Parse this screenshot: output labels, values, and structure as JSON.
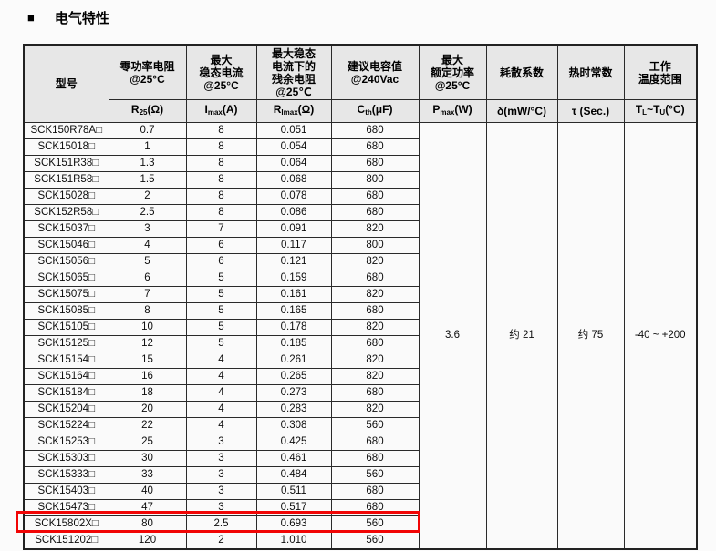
{
  "header": {
    "bullet": "■",
    "title": "电气特性"
  },
  "table": {
    "columns": [
      {
        "id": "model",
        "title": "型号",
        "unit_segments": []
      },
      {
        "id": "r25",
        "title": "零功率电阻\n@25°C",
        "unit_segments": [
          {
            "t": "R"
          },
          {
            "s": "25"
          },
          {
            "t": "(Ω)"
          }
        ]
      },
      {
        "id": "imax",
        "title": "最大\n稳态电流\n@25°C",
        "unit_segments": [
          {
            "t": "I"
          },
          {
            "s": "max"
          },
          {
            "t": "(A)"
          }
        ]
      },
      {
        "id": "rimax",
        "title": "最大稳态\n电流下的\n残余电阻\n@25℃",
        "unit_segments": [
          {
            "t": "R"
          },
          {
            "s": "Imax"
          },
          {
            "t": "(Ω)"
          }
        ]
      },
      {
        "id": "cth",
        "title": "建议电容值\n@240Vac",
        "unit_segments": [
          {
            "t": "C"
          },
          {
            "s": "th"
          },
          {
            "t": "(μF)"
          }
        ]
      },
      {
        "id": "pmax",
        "title": "最大\n额定功率\n@25°C",
        "unit_segments": [
          {
            "t": "P"
          },
          {
            "s": "max"
          },
          {
            "t": "(W)"
          }
        ]
      },
      {
        "id": "delta",
        "title": "耗散系数",
        "unit_segments": [
          {
            "t": "δ(mW/°C)"
          }
        ]
      },
      {
        "id": "tau",
        "title": "热时常数",
        "unit_segments": [
          {
            "t": "τ (Sec.)"
          }
        ]
      },
      {
        "id": "temp",
        "title": "工作\n温度范围",
        "unit_segments": [
          {
            "t": "T"
          },
          {
            "s": "L"
          },
          {
            "t": "~T"
          },
          {
            "s": "U"
          },
          {
            "t": "(°C)"
          }
        ]
      }
    ],
    "rows": [
      {
        "model": "SCK150R78A□",
        "r25": "0.7",
        "imax": "8",
        "rimax": "0.051",
        "cth": "680",
        "highlighted": false
      },
      {
        "model": "SCK15018□",
        "r25": "1",
        "imax": "8",
        "rimax": "0.054",
        "cth": "680",
        "highlighted": false
      },
      {
        "model": "SCK151R38□",
        "r25": "1.3",
        "imax": "8",
        "rimax": "0.064",
        "cth": "680",
        "highlighted": false
      },
      {
        "model": "SCK151R58□",
        "r25": "1.5",
        "imax": "8",
        "rimax": "0.068",
        "cth": "800",
        "highlighted": false
      },
      {
        "model": "SCK15028□",
        "r25": "2",
        "imax": "8",
        "rimax": "0.078",
        "cth": "680",
        "highlighted": false
      },
      {
        "model": "SCK152R58□",
        "r25": "2.5",
        "imax": "8",
        "rimax": "0.086",
        "cth": "680",
        "highlighted": false
      },
      {
        "model": "SCK15037□",
        "r25": "3",
        "imax": "7",
        "rimax": "0.091",
        "cth": "820",
        "highlighted": false
      },
      {
        "model": "SCK15046□",
        "r25": "4",
        "imax": "6",
        "rimax": "0.117",
        "cth": "800",
        "highlighted": false
      },
      {
        "model": "SCK15056□",
        "r25": "5",
        "imax": "6",
        "rimax": "0.121",
        "cth": "820",
        "highlighted": false
      },
      {
        "model": "SCK15065□",
        "r25": "6",
        "imax": "5",
        "rimax": "0.159",
        "cth": "680",
        "highlighted": false
      },
      {
        "model": "SCK15075□",
        "r25": "7",
        "imax": "5",
        "rimax": "0.161",
        "cth": "820",
        "highlighted": false
      },
      {
        "model": "SCK15085□",
        "r25": "8",
        "imax": "5",
        "rimax": "0.165",
        "cth": "680",
        "highlighted": false
      },
      {
        "model": "SCK15105□",
        "r25": "10",
        "imax": "5",
        "rimax": "0.178",
        "cth": "820",
        "highlighted": false
      },
      {
        "model": "SCK15125□",
        "r25": "12",
        "imax": "5",
        "rimax": "0.185",
        "cth": "680",
        "highlighted": false
      },
      {
        "model": "SCK15154□",
        "r25": "15",
        "imax": "4",
        "rimax": "0.261",
        "cth": "820",
        "highlighted": false
      },
      {
        "model": "SCK15164□",
        "r25": "16",
        "imax": "4",
        "rimax": "0.265",
        "cth": "820",
        "highlighted": false
      },
      {
        "model": "SCK15184□",
        "r25": "18",
        "imax": "4",
        "rimax": "0.273",
        "cth": "680",
        "highlighted": false
      },
      {
        "model": "SCK15204□",
        "r25": "20",
        "imax": "4",
        "rimax": "0.283",
        "cth": "820",
        "highlighted": false
      },
      {
        "model": "SCK15224□",
        "r25": "22",
        "imax": "4",
        "rimax": "0.308",
        "cth": "560",
        "highlighted": false
      },
      {
        "model": "SCK15253□",
        "r25": "25",
        "imax": "3",
        "rimax": "0.425",
        "cth": "680",
        "highlighted": false
      },
      {
        "model": "SCK15303□",
        "r25": "30",
        "imax": "3",
        "rimax": "0.461",
        "cth": "680",
        "highlighted": false
      },
      {
        "model": "SCK15333□",
        "r25": "33",
        "imax": "3",
        "rimax": "0.484",
        "cth": "560",
        "highlighted": false
      },
      {
        "model": "SCK15403□",
        "r25": "40",
        "imax": "3",
        "rimax": "0.511",
        "cth": "680",
        "highlighted": false
      },
      {
        "model": "SCK15473□",
        "r25": "47",
        "imax": "3",
        "rimax": "0.517",
        "cth": "680",
        "highlighted": false
      },
      {
        "model": "SCK15802X□",
        "r25": "80",
        "imax": "2.5",
        "rimax": "0.693",
        "cth": "560",
        "highlighted": true
      },
      {
        "model": "SCK151202□",
        "r25": "120",
        "imax": "2",
        "rimax": "1.010",
        "cth": "560",
        "highlighted": false
      }
    ],
    "merged": {
      "pmax": "3.6",
      "delta": "约 21",
      "tau": "约 75",
      "temp": "-40 ~ +200"
    },
    "highlight_color": "#f10505"
  }
}
